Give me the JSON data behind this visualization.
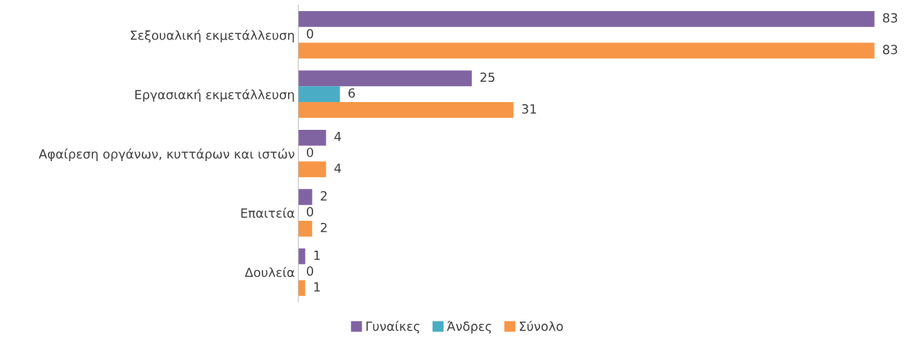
{
  "chart_data": {
    "type": "bar",
    "orientation": "horizontal",
    "categories": [
      "Σεξουαλική εκμετάλλευση",
      "Εργασιακή εκμετάλλευση",
      "Αφαίρεση οργάνων, κυττάρων και ιστών",
      "Επαιτεία",
      "Δουλεία"
    ],
    "series": [
      {
        "name": "Γυναίκες",
        "color": "#8064a2",
        "values": [
          83,
          25,
          4,
          2,
          1
        ]
      },
      {
        "name": "Άνδρες",
        "color": "#4bacc6",
        "values": [
          0,
          6,
          0,
          0,
          0
        ]
      },
      {
        "name": "Σύνολο",
        "color": "#f79646",
        "values": [
          83,
          31,
          4,
          2,
          1
        ]
      }
    ],
    "tick_labels": "y",
    "data_labels": true,
    "legend": "bottom",
    "grid": false
  }
}
